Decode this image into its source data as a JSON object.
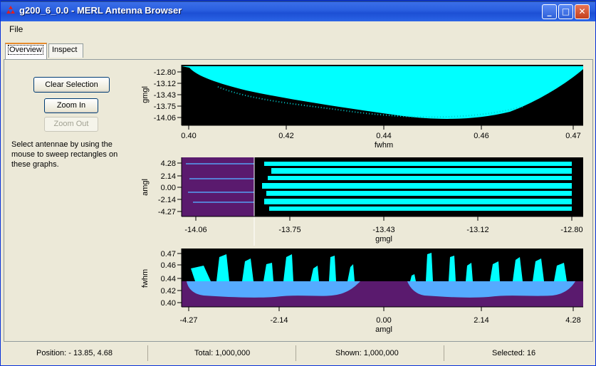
{
  "window": {
    "title": "g200_6_0.0 - MERL Antenna Browser",
    "minimize_label": "_",
    "maximize_label": "□",
    "close_label": "✕"
  },
  "menu": {
    "file_label": "File"
  },
  "tabs": [
    {
      "label": "Overview",
      "active": true
    },
    {
      "label": "Inspect",
      "active": false
    }
  ],
  "controls": {
    "clear_selection": "Clear Selection",
    "zoom_in": "Zoom In",
    "zoom_out": "Zoom Out",
    "instructions": "Select antennae by using the mouse to sweep rectangles on these graphs."
  },
  "plots": [
    {
      "ylabel": "gmgl",
      "xlabel": "fwhm",
      "yticks": [
        "-12.80",
        "-13.12",
        "-13.43",
        "-13.75",
        "-14.06"
      ],
      "xticks": [
        "0.40",
        "0.42",
        "0.44",
        "0.46",
        "0.47"
      ]
    },
    {
      "ylabel": "amgl",
      "xlabel": "gmgl",
      "yticks": [
        "4.28",
        "2.14",
        "0.00",
        "-2.14",
        "-4.27"
      ],
      "xticks": [
        "-14.06",
        "-13.75",
        "-13.43",
        "-13.12",
        "-12.80"
      ]
    },
    {
      "ylabel": "fwhm",
      "xlabel": "amgl",
      "yticks": [
        "0.47",
        "0.46",
        "0.44",
        "0.42",
        "0.40"
      ],
      "xticks": [
        "-4.27",
        "-2.14",
        "0.00",
        "2.14",
        "4.28"
      ]
    }
  ],
  "colors": {
    "points": "#00ffff",
    "selection": "#5a1a6e",
    "selected_points": "#55aaff",
    "plot_bg": "#000000"
  },
  "status": {
    "position": "Position: - 13.85,  4.68",
    "total": "Total: 1,000,000",
    "shown": "Shown: 1,000,000",
    "selected": "Selected: 16"
  }
}
